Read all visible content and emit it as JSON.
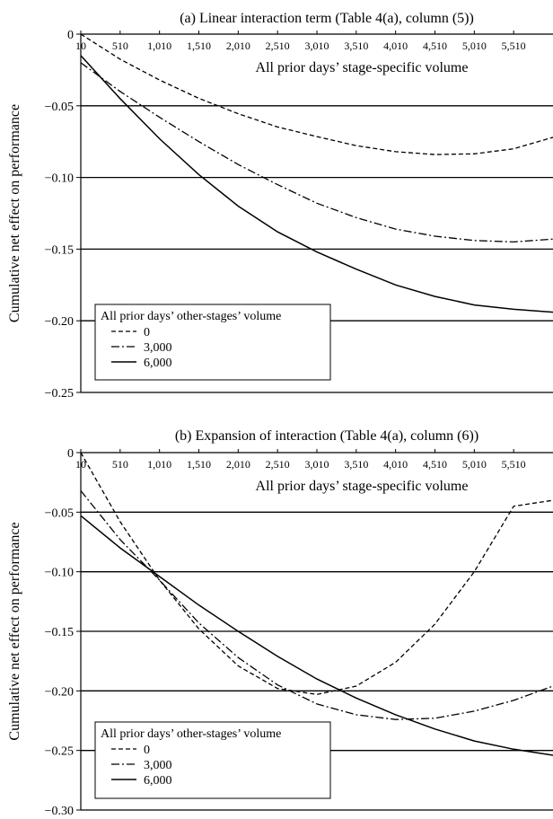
{
  "chart_data": [
    {
      "type": "line",
      "title": "(a) Linear interaction term (Table 4(a), column (5))",
      "xlabel": "All prior days’ stage-specific volume",
      "ylabel": "Cumulative net effect on performance",
      "x_tick_labels": [
        "10",
        "510",
        "1,010",
        "1,510",
        "2,010",
        "2,510",
        "3,010",
        "3,510",
        "4,010",
        "4,510",
        "5,010",
        "5,510"
      ],
      "y_tick_labels": [
        "0",
        "−0.05",
        "−0.10",
        "−0.15",
        "−0.20",
        "−0.25"
      ],
      "xlim": [
        10,
        6010
      ],
      "ylim": [
        -0.25,
        0
      ],
      "grid": "horizontal",
      "legend_title": "All prior days’ other-stages’ volume",
      "legend_placement": "lower-left",
      "series": [
        {
          "name": "0",
          "style": "dashed",
          "x": [
            10,
            510,
            1010,
            1510,
            2010,
            2510,
            3010,
            3510,
            4010,
            4510,
            5010,
            5510,
            6010
          ],
          "y": [
            0.0,
            -0.0175,
            -0.032,
            -0.0448,
            -0.0555,
            -0.0648,
            -0.0715,
            -0.0778,
            -0.082,
            -0.084,
            -0.0835,
            -0.08,
            -0.072
          ]
        },
        {
          "name": "3,000",
          "style": "dash-dot",
          "x": [
            10,
            510,
            1010,
            1510,
            2010,
            2510,
            3010,
            3510,
            4010,
            4510,
            5010,
            5510,
            6010
          ],
          "y": [
            -0.02,
            -0.04,
            -0.058,
            -0.075,
            -0.091,
            -0.105,
            -0.118,
            -0.128,
            -0.136,
            -0.141,
            -0.144,
            -0.145,
            -0.143
          ]
        },
        {
          "name": "6,000",
          "style": "solid",
          "x": [
            10,
            510,
            1010,
            1510,
            2010,
            2510,
            3010,
            3510,
            4010,
            4510,
            5010,
            5510,
            6010
          ],
          "y": [
            -0.015,
            -0.045,
            -0.073,
            -0.098,
            -0.12,
            -0.138,
            -0.152,
            -0.164,
            -0.175,
            -0.183,
            -0.189,
            -0.192,
            -0.194
          ]
        }
      ]
    },
    {
      "type": "line",
      "title": "(b) Expansion of interaction (Table 4(a), column (6))",
      "xlabel": "All prior days’ stage-specific volume",
      "ylabel": "Cumulative net effect on performance",
      "x_tick_labels": [
        "10",
        "510",
        "1,010",
        "1,510",
        "2,010",
        "2,510",
        "3,010",
        "3,510",
        "4,010",
        "4,510",
        "5,010",
        "5,510"
      ],
      "y_tick_labels": [
        "0",
        "−0.05",
        "−0.10",
        "−0.15",
        "−0.20",
        "−0.25",
        "−0.30"
      ],
      "xlim": [
        10,
        6010
      ],
      "ylim": [
        -0.3,
        0
      ],
      "grid": "horizontal",
      "legend_title": "All prior days’ other-stages’ volume",
      "legend_placement": "lower-left",
      "series": [
        {
          "name": "0",
          "style": "dashed",
          "x": [
            10,
            510,
            1010,
            1510,
            2010,
            2510,
            3010,
            3510,
            4010,
            4510,
            5010,
            5510,
            6010
          ],
          "y": [
            0.0,
            -0.058,
            -0.107,
            -0.148,
            -0.179,
            -0.198,
            -0.203,
            -0.196,
            -0.176,
            -0.144,
            -0.1,
            -0.045,
            -0.04
          ]
        },
        {
          "name": "3,000",
          "style": "dash-dot",
          "x": [
            10,
            510,
            1010,
            1510,
            2010,
            2510,
            3010,
            3510,
            4010,
            4510,
            5010,
            5510,
            6010
          ],
          "y": [
            -0.032,
            -0.073,
            -0.107,
            -0.143,
            -0.172,
            -0.195,
            -0.211,
            -0.22,
            -0.224,
            -0.223,
            -0.217,
            -0.208,
            -0.196
          ]
        },
        {
          "name": "6,000",
          "style": "solid",
          "x": [
            10,
            510,
            1010,
            1510,
            2010,
            2510,
            3010,
            3510,
            4010,
            4510,
            5010,
            5510,
            6010
          ],
          "y": [
            -0.053,
            -0.08,
            -0.104,
            -0.128,
            -0.15,
            -0.171,
            -0.19,
            -0.206,
            -0.22,
            -0.232,
            -0.242,
            -0.249,
            -0.254
          ]
        }
      ]
    }
  ]
}
